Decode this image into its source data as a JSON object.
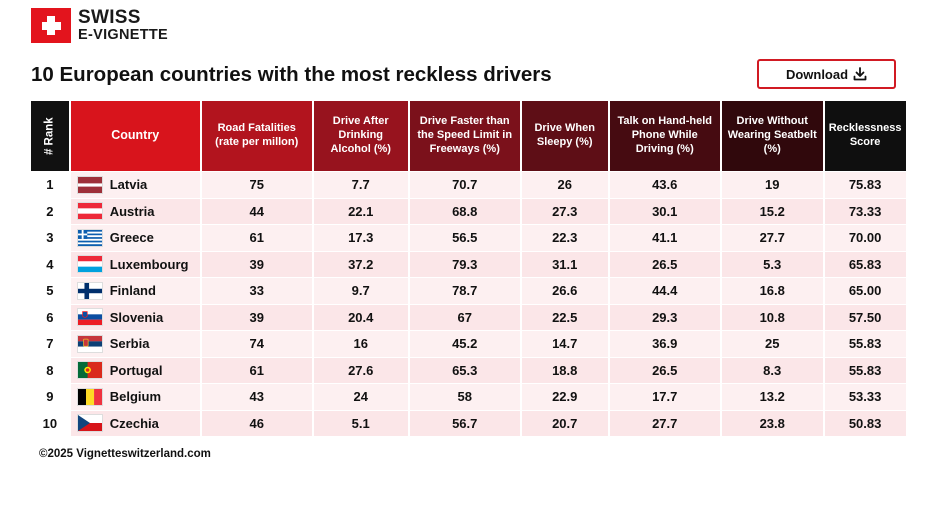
{
  "brand": {
    "line1": "SWISS",
    "line2": "E-VIGNETTE",
    "color": "#e3141d"
  },
  "title": "10 European countries with the most reckless drivers",
  "download_label": "Download",
  "footer": "©2025 Vignetteswitzerland.com",
  "chart_data": {
    "type": "table",
    "title": "10 European countries with the most reckless drivers",
    "headers": {
      "rank": "# Rank",
      "country": "Country",
      "road_fatalities": "Road Fatalities (rate per millon)",
      "drive_after_drinking": "Drive After Drinking Alcohol (%)",
      "drive_faster": "Drive Faster than the Speed Limit in Freeways (%)",
      "drive_sleepy": "Drive When Sleepy (%)",
      "talk_phone": "Talk on Hand-held Phone While Driving (%)",
      "no_seatbelt": "Drive Without Wearing Seatbelt (%)",
      "score": "Recklessness Score"
    },
    "rows": [
      {
        "rank": "1",
        "country": "Latvia",
        "flag": "latvia",
        "road_fatalities": "75",
        "drive_after_drinking": "7.7",
        "drive_faster": "70.7",
        "drive_sleepy": "26",
        "talk_phone": "43.6",
        "no_seatbelt": "19",
        "score": "75.83"
      },
      {
        "rank": "2",
        "country": "Austria",
        "flag": "austria",
        "road_fatalities": "44",
        "drive_after_drinking": "22.1",
        "drive_faster": "68.8",
        "drive_sleepy": "27.3",
        "talk_phone": "30.1",
        "no_seatbelt": "15.2",
        "score": "73.33"
      },
      {
        "rank": "3",
        "country": "Greece",
        "flag": "greece",
        "road_fatalities": "61",
        "drive_after_drinking": "17.3",
        "drive_faster": "56.5",
        "drive_sleepy": "22.3",
        "talk_phone": "41.1",
        "no_seatbelt": "27.7",
        "score": "70.00"
      },
      {
        "rank": "4",
        "country": "Luxembourg",
        "flag": "luxembourg",
        "road_fatalities": "39",
        "drive_after_drinking": "37.2",
        "drive_faster": "79.3",
        "drive_sleepy": "31.1",
        "talk_phone": "26.5",
        "no_seatbelt": "5.3",
        "score": "65.83"
      },
      {
        "rank": "5",
        "country": "Finland",
        "flag": "finland",
        "road_fatalities": "33",
        "drive_after_drinking": "9.7",
        "drive_faster": "78.7",
        "drive_sleepy": "26.6",
        "talk_phone": "44.4",
        "no_seatbelt": "16.8",
        "score": "65.00"
      },
      {
        "rank": "6",
        "country": "Slovenia",
        "flag": "slovenia",
        "road_fatalities": "39",
        "drive_after_drinking": "20.4",
        "drive_faster": "67",
        "drive_sleepy": "22.5",
        "talk_phone": "29.3",
        "no_seatbelt": "10.8",
        "score": "57.50"
      },
      {
        "rank": "7",
        "country": "Serbia",
        "flag": "serbia",
        "road_fatalities": "74",
        "drive_after_drinking": "16",
        "drive_faster": "45.2",
        "drive_sleepy": "14.7",
        "talk_phone": "36.9",
        "no_seatbelt": "25",
        "score": "55.83"
      },
      {
        "rank": "8",
        "country": "Portugal",
        "flag": "portugal",
        "road_fatalities": "61",
        "drive_after_drinking": "27.6",
        "drive_faster": "65.3",
        "drive_sleepy": "18.8",
        "talk_phone": "26.5",
        "no_seatbelt": "8.3",
        "score": "55.83"
      },
      {
        "rank": "9",
        "country": "Belgium",
        "flag": "belgium",
        "road_fatalities": "43",
        "drive_after_drinking": "24",
        "drive_faster": "58",
        "drive_sleepy": "22.9",
        "talk_phone": "17.7",
        "no_seatbelt": "13.2",
        "score": "53.33"
      },
      {
        "rank": "10",
        "country": "Czechia",
        "flag": "czechia",
        "road_fatalities": "46",
        "drive_after_drinking": "5.1",
        "drive_faster": "56.7",
        "drive_sleepy": "20.7",
        "talk_phone": "27.7",
        "no_seatbelt": "23.8",
        "score": "50.83"
      }
    ]
  }
}
